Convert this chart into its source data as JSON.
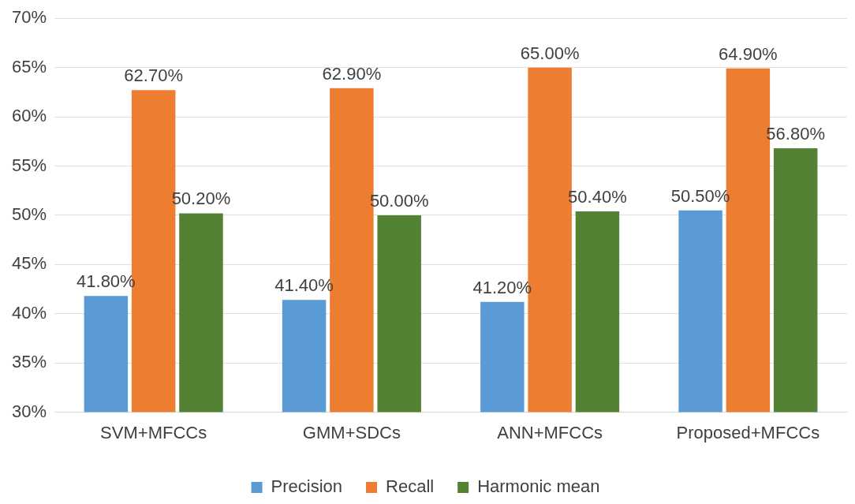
{
  "chart_data": {
    "type": "bar",
    "categories": [
      "SVM+MFCCs",
      "GMM+SDCs",
      "ANN+MFCCs",
      "Proposed+MFCCs"
    ],
    "series": [
      {
        "name": "Precision",
        "color": "#5b9bd5",
        "values": [
          41.8,
          41.4,
          41.2,
          50.5
        ],
        "value_labels": [
          "41.80%",
          "41.40%",
          "41.20%",
          "50.50%"
        ]
      },
      {
        "name": "Recall",
        "color": "#ed7d31",
        "values": [
          62.7,
          62.9,
          65.0,
          64.9
        ],
        "value_labels": [
          "62.70%",
          "62.90%",
          "65.00%",
          "64.90%"
        ]
      },
      {
        "name": "Harmonic mean",
        "color": "#548235",
        "values": [
          50.2,
          50.0,
          50.4,
          56.8
        ],
        "value_labels": [
          "50.20%",
          "50.00%",
          "50.40%",
          "56.80%"
        ]
      }
    ],
    "ylim": [
      30,
      70
    ],
    "yticks": [
      {
        "value": 30,
        "label": "30%"
      },
      {
        "value": 35,
        "label": "35%"
      },
      {
        "value": 40,
        "label": "40%"
      },
      {
        "value": 45,
        "label": "45%"
      },
      {
        "value": 50,
        "label": "50%"
      },
      {
        "value": 55,
        "label": "55%"
      },
      {
        "value": 60,
        "label": "60%"
      },
      {
        "value": 65,
        "label": "65%"
      },
      {
        "value": 70,
        "label": "70%"
      }
    ],
    "grid": "y",
    "legend": "bottom"
  }
}
